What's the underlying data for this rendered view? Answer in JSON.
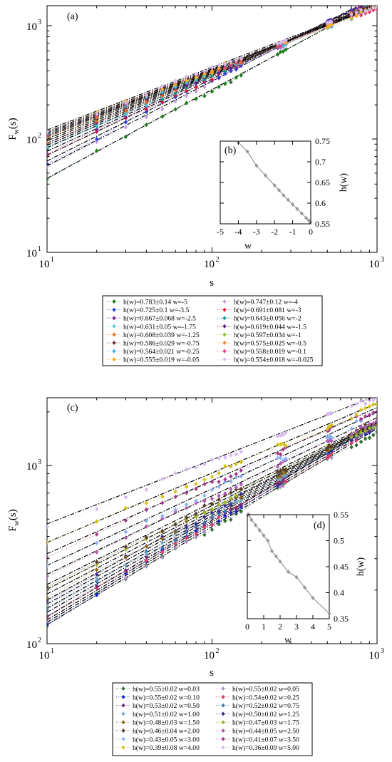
{
  "panels": {
    "a": {
      "label": "(a)",
      "xlabel": "s",
      "ylabel_main": "F",
      "ylabel_sub": "w",
      "ylabel_tail": "(s)",
      "x_ticks": [
        {
          "v": 10,
          "base": "10",
          "exp": "1"
        },
        {
          "v": 100,
          "base": "10",
          "exp": "2"
        },
        {
          "v": 1000,
          "base": "10",
          "exp": "3"
        }
      ],
      "y_ticks": [
        {
          "v": 10,
          "base": "10",
          "exp": "1"
        },
        {
          "v": 100,
          "base": "10",
          "exp": "2"
        },
        {
          "v": 1000,
          "base": "10",
          "exp": "3"
        }
      ]
    },
    "b": {
      "label": "(b)",
      "xlabel": "w",
      "ylabel": "h(w)",
      "x_ticks": [
        "-5",
        "-4",
        "-3",
        "-2",
        "-1",
        "0"
      ],
      "y_ticks": [
        "0.55",
        "0.6",
        "0.65",
        "0.7",
        "0.75"
      ]
    },
    "c": {
      "label": "(c)",
      "xlabel": "s",
      "ylabel_main": "F",
      "ylabel_sub": "w",
      "ylabel_tail": "(s)",
      "x_ticks": [
        {
          "v": 10,
          "base": "10",
          "exp": "1"
        },
        {
          "v": 100,
          "base": "10",
          "exp": "2"
        },
        {
          "v": 1000,
          "base": "10",
          "exp": "3"
        }
      ],
      "y_ticks": [
        {
          "v": 100,
          "base": "10",
          "exp": "2"
        },
        {
          "v": 1000,
          "base": "10",
          "exp": "3"
        }
      ]
    },
    "d": {
      "label": "(d)",
      "xlabel": "w",
      "ylabel": "h(w)",
      "x_ticks": [
        "0",
        "1",
        "2",
        "3",
        "4",
        "5"
      ],
      "y_ticks": [
        "0.35",
        "0.4",
        "0.45",
        "0.5",
        "0.55"
      ]
    }
  },
  "chart_data": [
    {
      "id": "a",
      "type": "scatter",
      "xscale": "log",
      "yscale": "log",
      "xlim": [
        10,
        1000
      ],
      "ylim": [
        10,
        1500
      ],
      "xlabel": "s",
      "ylabel": "Fw(s)",
      "x": [
        10,
        20,
        30,
        40,
        50,
        60,
        70,
        80,
        90,
        100,
        110,
        120,
        130,
        140,
        150,
        250,
        260,
        270,
        280,
        500,
        510,
        520,
        530,
        700,
        750,
        800,
        850,
        900,
        950,
        1000
      ],
      "legend_placement": "below",
      "series": [
        {
          "legend": "h(w)=0.783±0.14 w=-5",
          "w": -5,
          "h": 0.783,
          "F10": 45,
          "color": "#1a7a1a"
        },
        {
          "legend": "h(w)=0.747±0.12 w=-4",
          "w": -4,
          "h": 0.747,
          "F10": 58,
          "color": "#c79be0"
        },
        {
          "legend": "h(w)=0.725±0.1 w=-3.5",
          "w": -3.5,
          "h": 0.725,
          "F10": 64,
          "color": "#1f3fd6"
        },
        {
          "legend": "h(w)=0.691±0.081 w=-3",
          "w": -3,
          "h": 0.691,
          "F10": 72,
          "color": "#e0162b"
        },
        {
          "legend": "h(w)=0.667±0.068 w=-2.5",
          "w": -2.5,
          "h": 0.667,
          "F10": 78,
          "color": "#7a1f9e"
        },
        {
          "legend": "h(w)=0.643±0.056 w=-2",
          "w": -2,
          "h": 0.643,
          "F10": 84,
          "color": "#17949a"
        },
        {
          "legend": "h(w)=0.631±0.05 w=-1.75",
          "w": -1.75,
          "h": 0.631,
          "F10": 88,
          "color": "#57c7d6"
        },
        {
          "legend": "h(w)=0.619±0.044 w=-1.5",
          "w": -1.5,
          "h": 0.619,
          "F10": 92,
          "color": "#5a1b8a"
        },
        {
          "legend": "h(w)=0.608±0.039 w=-1.25",
          "w": -1.25,
          "h": 0.608,
          "F10": 96,
          "color": "#e86a1f"
        },
        {
          "legend": "h(w)=0.597±0.034 w=-1",
          "w": -1,
          "h": 0.597,
          "F10": 100,
          "color": "#8cbf2a"
        },
        {
          "legend": "h(w)=0.586±0.029 w=-0.75",
          "w": -0.75,
          "h": 0.586,
          "F10": 104,
          "color": "#6b2f2f"
        },
        {
          "legend": "h(w)=0.575±0.025 w=-0.5",
          "w": -0.5,
          "h": 0.575,
          "F10": 107,
          "color": "#f08c33"
        },
        {
          "legend": "h(w)=0.564±0.021 w=-0.25",
          "w": -0.25,
          "h": 0.564,
          "F10": 110,
          "color": "#3fb0f0"
        },
        {
          "legend": "h(w)=0.558±0.019 w=-0.1",
          "w": -0.1,
          "h": 0.558,
          "F10": 113,
          "color": "#e0407a"
        },
        {
          "legend": "h(w)=0.555±0.019 w=-0.05",
          "w": -0.05,
          "h": 0.555,
          "F10": 116,
          "color": "#f2b01e"
        },
        {
          "legend": "h(w)=0.554±0.018 w=-0.025",
          "w": -0.025,
          "h": 0.554,
          "F10": 120,
          "color": "#d9b8ee"
        }
      ]
    },
    {
      "id": "b",
      "type": "line",
      "xlim": [
        -5,
        0
      ],
      "ylim": [
        0.55,
        0.75
      ],
      "xlabel": "w",
      "ylabel": "h(w)",
      "x": [
        -4,
        -3.5,
        -3,
        -2.5,
        -2,
        -1.75,
        -1.5,
        -1.25,
        -1,
        -0.75,
        -0.5,
        -0.25,
        -0.1,
        -0.05,
        -0.025
      ],
      "y": [
        0.747,
        0.725,
        0.691,
        0.667,
        0.643,
        0.631,
        0.619,
        0.608,
        0.597,
        0.586,
        0.575,
        0.564,
        0.558,
        0.555,
        0.554
      ],
      "color": "#999999"
    },
    {
      "id": "c",
      "type": "scatter",
      "xscale": "log",
      "yscale": "log",
      "xlim": [
        10,
        1000
      ],
      "ylim": [
        100,
        2400
      ],
      "xlabel": "s",
      "ylabel": "Fw(s)",
      "x": [
        10,
        20,
        30,
        40,
        50,
        60,
        70,
        80,
        90,
        100,
        110,
        120,
        130,
        140,
        150,
        250,
        260,
        270,
        280,
        500,
        510,
        520,
        530,
        700,
        750,
        800,
        850,
        900,
        950,
        1000
      ],
      "legend_placement": "below",
      "series": [
        {
          "legend": "h(w)=0.55±0.02 w=0.03",
          "w": 0.03,
          "h": 0.55,
          "F10": 128,
          "color": "#2f6b2f"
        },
        {
          "legend": "h(w)=0.55±0.02 w=0.05",
          "w": 0.05,
          "h": 0.55,
          "F10": 132,
          "color": "#b08fc9"
        },
        {
          "legend": "h(w)=0.55±0.02 w=0.10",
          "w": 0.1,
          "h": 0.55,
          "F10": 136,
          "color": "#1422c8"
        },
        {
          "legend": "h(w)=0.54±0.02 w=0.25",
          "w": 0.25,
          "h": 0.54,
          "F10": 142,
          "color": "#e03a6a"
        },
        {
          "legend": "h(w)=0.53±0.02 w=0.50",
          "w": 0.5,
          "h": 0.53,
          "F10": 150,
          "color": "#6a2a7a"
        },
        {
          "legend": "h(w)=0.52±0.02 w=0.75",
          "w": 0.75,
          "h": 0.52,
          "F10": 158,
          "color": "#3a7ab0"
        },
        {
          "legend": "h(w)=0.51±0.02 w=1.00",
          "w": 1.0,
          "h": 0.51,
          "F10": 167,
          "color": "#7aa8c8"
        },
        {
          "legend": "h(w)=0.50±0.02 w=1.25",
          "w": 1.25,
          "h": 0.5,
          "F10": 176,
          "color": "#3a2a8a"
        },
        {
          "legend": "h(w)=0.48±0.03 w=1.50",
          "w": 1.5,
          "h": 0.48,
          "F10": 190,
          "color": "#8a6a1a"
        },
        {
          "legend": "h(w)=0.47±0.03 w=1.75",
          "w": 1.75,
          "h": 0.47,
          "F10": 202,
          "color": "#9ab82a"
        },
        {
          "legend": "h(w)=0.46±0.04 w=2.00",
          "w": 2.0,
          "h": 0.46,
          "F10": 215,
          "color": "#5a3a2a"
        },
        {
          "legend": "h(w)=0.44±0.05 w=2.50",
          "w": 2.5,
          "h": 0.44,
          "F10": 245,
          "color": "#b05ab0"
        },
        {
          "legend": "h(w)=0.43±0.05 w=3.00",
          "w": 3.0,
          "h": 0.43,
          "F10": 275,
          "color": "#8ab0f0"
        },
        {
          "legend": "h(w)=0.41±0.07 w=3.50",
          "w": 3.5,
          "h": 0.41,
          "F10": 320,
          "color": "#a03a8a"
        },
        {
          "legend": "h(w)=0.39±0.08 w=4.00",
          "w": 4.0,
          "h": 0.39,
          "F10": 370,
          "color": "#d6c21a"
        },
        {
          "legend": "h(w)=0.36±0.09 w=5.00",
          "w": 5.0,
          "h": 0.36,
          "F10": 470,
          "color": "#d4b8f0"
        }
      ]
    },
    {
      "id": "d",
      "type": "line",
      "xlim": [
        0,
        5
      ],
      "ylim": [
        0.35,
        0.55
      ],
      "xlabel": "w",
      "ylabel": "h(w)",
      "x": [
        0.03,
        0.05,
        0.1,
        0.25,
        0.5,
        0.75,
        1.0,
        1.25,
        1.5,
        1.75,
        2.0,
        2.5,
        3.0,
        3.5,
        4.0,
        5.0
      ],
      "y": [
        0.55,
        0.55,
        0.55,
        0.54,
        0.53,
        0.52,
        0.51,
        0.5,
        0.48,
        0.47,
        0.46,
        0.44,
        0.43,
        0.41,
        0.39,
        0.36
      ],
      "color": "#999999"
    }
  ]
}
